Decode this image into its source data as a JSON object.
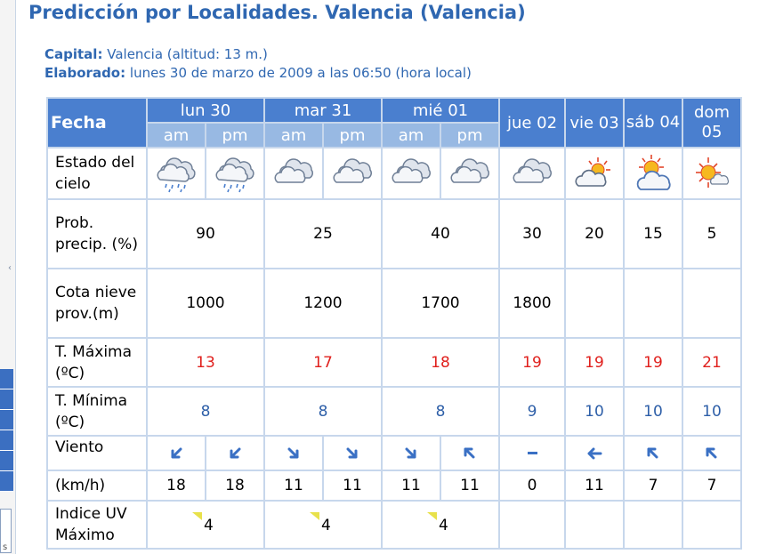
{
  "page": {
    "title": "Predicción por Localidades. Valencia (Valencia)",
    "capital_label": "Capital:",
    "capital_value": "Valencia (altitud: 13 m.)",
    "elaborado_label": "Elaborado:",
    "elaborado_value": "lunes 30 de marzo de 2009 a las 06:50 (hora local)"
  },
  "table": {
    "fecha_label": "Fecha",
    "days": [
      {
        "label": "lun 30",
        "split": true,
        "am": "am",
        "pm": "pm"
      },
      {
        "label": "mar 31",
        "split": true,
        "am": "am",
        "pm": "pm"
      },
      {
        "label": "mié 01",
        "split": true,
        "am": "am",
        "pm": "pm"
      },
      {
        "label": "jue 02",
        "split": false
      },
      {
        "label": "vie 03",
        "split": false
      },
      {
        "label": "sáb 04",
        "split": false
      },
      {
        "label": "dom 05",
        "split": false
      }
    ],
    "row_labels": {
      "estado": "Estado del cielo",
      "prob": "Prob. precip. (%)",
      "cota": "Cota nieve prov.(m)",
      "tmax": "T. Máxima (ºC)",
      "tmin": "T. Mínima (ºC)",
      "viento": "Viento",
      "kmh": "(km/h)",
      "uv": "Indice UV Máximo"
    },
    "sky_icons": [
      "cloud-rain-icon",
      "cloud-rain-icon",
      "cloud-icon",
      "cloud-icon",
      "cloud-icon",
      "cloud-icon",
      "cloud-icon",
      "sun-cloud-icon",
      "sun-cloud-icon",
      "sun-small-cloud-icon"
    ],
    "prob_precip": [
      "90",
      "25",
      "40",
      "30",
      "20",
      "15",
      "5"
    ],
    "cota_nieve": [
      "1000",
      "1200",
      "1700",
      "1800",
      "",
      "",
      ""
    ],
    "t_max": [
      "13",
      "17",
      "18",
      "19",
      "19",
      "19",
      "21"
    ],
    "t_min": [
      "8",
      "8",
      "8",
      "9",
      "10",
      "10",
      "10"
    ],
    "wind_dirs": [
      "arrow-down-left-icon",
      "arrow-down-left-icon",
      "arrow-down-right-icon",
      "arrow-down-right-icon",
      "arrow-down-right-icon",
      "arrow-up-left-icon",
      "calm-dash-icon",
      "arrow-left-icon",
      "arrow-up-left-icon",
      "arrow-up-left-icon"
    ],
    "wind_speeds": [
      "18",
      "18",
      "11",
      "11",
      "11",
      "11",
      "0",
      "11",
      "7",
      "7"
    ],
    "uv": [
      "4",
      "4",
      "4",
      "",
      "",
      "",
      ""
    ]
  },
  "colors": {
    "header_blue": "#4a7fcf",
    "subheader_blue": "#98b9e3",
    "grid": "#c7d7ec",
    "title_blue": "#2f67b1",
    "tmax_red": "#e0201d",
    "tmin_blue": "#2e5fa8",
    "arrow_blue": "#3a70c4",
    "uv_flag": "#e8e14a"
  }
}
